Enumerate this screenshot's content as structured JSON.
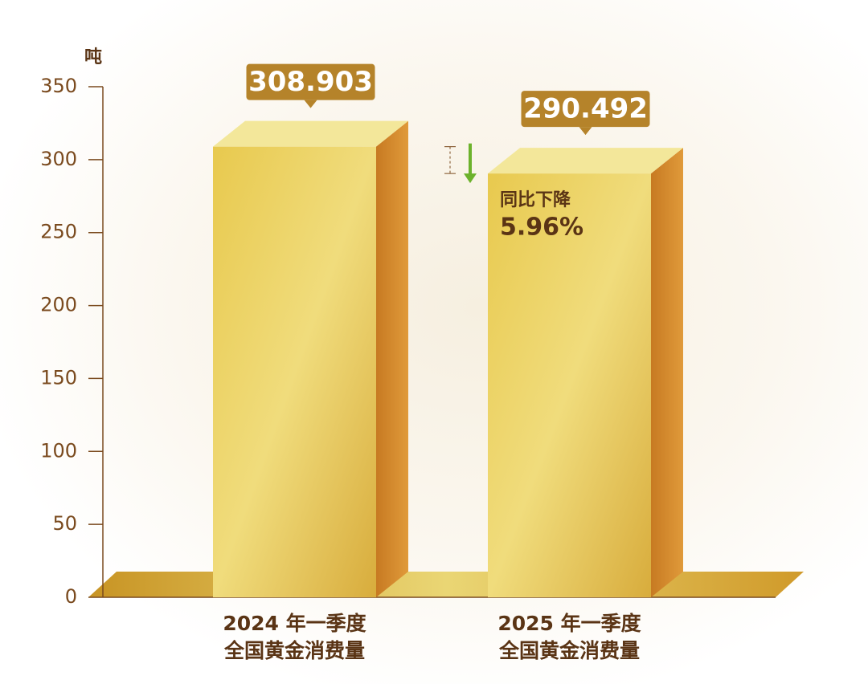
{
  "chart_data": {
    "type": "bar3d",
    "y_label": "吨",
    "categories": [
      "2024 年一季度\n全国黄金消费量",
      "2025 年一季度\n全国黄金消费量"
    ],
    "values": [
      308.903,
      290.492
    ],
    "color": "#e2c55a",
    "ylim": [
      0,
      350
    ],
    "yticks": [
      0,
      50,
      100,
      150,
      200,
      250,
      300,
      350
    ],
    "annotations": [
      "同比下降",
      "5.96%"
    ]
  }
}
